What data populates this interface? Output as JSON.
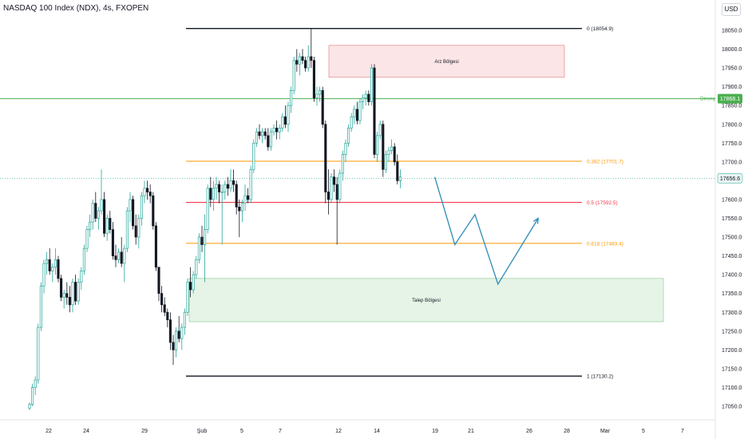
{
  "header": {
    "title": "NASDAQ 100 Index (NDX), 4s, FXOPEN",
    "currency": "USD"
  },
  "colors": {
    "up": "#26a69a",
    "down": "#131722",
    "green_line": "#4caf50",
    "fib_orange": "#ff9800",
    "fib_red": "#f23645",
    "fib_black": "#131722",
    "arrow": "#2e8bb8",
    "supply": "#f7c5c8",
    "demand": "#c8e6c9"
  },
  "chart_data": {
    "type": "candlestick",
    "title": "NASDAQ 100 Index (NDX), 4s, FXOPEN",
    "ylim": [
      17020,
      18080
    ],
    "y_ticks": [
      "18050.0",
      "18000.0",
      "17950.0",
      "17900.0",
      "17850.0",
      "17800.0",
      "17750.0",
      "17700.0",
      "17650.0",
      "17600.0",
      "17550.0",
      "17500.0",
      "17450.0",
      "17400.0",
      "17350.0",
      "17300.0",
      "17250.0",
      "17200.0",
      "17150.0",
      "17100.0",
      "17050.0"
    ],
    "x_ticks": [
      "22",
      "24",
      "29",
      "Şub",
      "5",
      "7",
      "12",
      "14",
      "19",
      "21",
      "26",
      "28",
      "Mar",
      "5",
      "7"
    ],
    "current_price": "17656.6",
    "resistance": {
      "label": "Direnç",
      "value": "17868.1",
      "price": 17868.1
    },
    "fibonacci": [
      {
        "ratio": "0",
        "label": "0 (18054.9)",
        "price": 18054.9
      },
      {
        "ratio": "0.382",
        "label": "0.382 (17701.7)",
        "price": 17701.7
      },
      {
        "ratio": "0.5",
        "label": "0.5 (17592.5)",
        "price": 17592.5
      },
      {
        "ratio": "0.618",
        "label": "0.618 (17483.4)",
        "price": 17483.4
      }
    ],
    "fibonacci_bottom": {
      "ratio": "1",
      "label": "1 (17130.2)",
      "price": 17130.2
    },
    "zones": [
      {
        "name": "Arz Bölgesi",
        "top": 18010,
        "bottom": 17925
      },
      {
        "name": "Talep Bölgesi",
        "top": 17390,
        "bottom": 17275
      }
    ],
    "projection": [
      {
        "bar": 141,
        "price": 17660
      },
      {
        "bar": 148,
        "price": 17480
      },
      {
        "bar": 155,
        "price": 17560
      },
      {
        "bar": 163,
        "price": 17375
      },
      {
        "bar": 177,
        "price": 17550
      }
    ],
    "candles": [
      [
        17045,
        17060,
        17040,
        17055
      ],
      [
        17055,
        17110,
        17050,
        17100
      ],
      [
        17100,
        17130,
        17080,
        17120
      ],
      [
        17120,
        17270,
        17110,
        17260
      ],
      [
        17260,
        17380,
        17250,
        17370
      ],
      [
        17370,
        17440,
        17350,
        17430
      ],
      [
        17430,
        17460,
        17400,
        17440
      ],
      [
        17440,
        17470,
        17400,
        17410
      ],
      [
        17410,
        17430,
        17380,
        17420
      ],
      [
        17420,
        17470,
        17400,
        17440
      ],
      [
        17440,
        17450,
        17380,
        17390
      ],
      [
        17390,
        17400,
        17330,
        17340
      ],
      [
        17340,
        17360,
        17310,
        17350
      ],
      [
        17350,
        17380,
        17320,
        17340
      ],
      [
        17340,
        17370,
        17300,
        17320
      ],
      [
        17320,
        17390,
        17300,
        17380
      ],
      [
        17380,
        17400,
        17320,
        17330
      ],
      [
        17330,
        17390,
        17320,
        17380
      ],
      [
        17380,
        17420,
        17360,
        17410
      ],
      [
        17410,
        17480,
        17400,
        17470
      ],
      [
        17470,
        17530,
        17460,
        17520
      ],
      [
        17520,
        17560,
        17500,
        17540
      ],
      [
        17540,
        17600,
        17520,
        17590
      ],
      [
        17590,
        17620,
        17540,
        17550
      ],
      [
        17550,
        17580,
        17520,
        17570
      ],
      [
        17570,
        17680,
        17560,
        17600
      ],
      [
        17600,
        17620,
        17500,
        17510
      ],
      [
        17510,
        17560,
        17490,
        17550
      ],
      [
        17550,
        17570,
        17510,
        17520
      ],
      [
        17520,
        17540,
        17440,
        17450
      ],
      [
        17450,
        17480,
        17420,
        17440
      ],
      [
        17440,
        17470,
        17430,
        17460
      ],
      [
        17460,
        17500,
        17420,
        17430
      ],
      [
        17430,
        17480,
        17380,
        17470
      ],
      [
        17470,
        17580,
        17460,
        17570
      ],
      [
        17570,
        17620,
        17540,
        17600
      ],
      [
        17600,
        17610,
        17520,
        17530
      ],
      [
        17530,
        17560,
        17480,
        17500
      ],
      [
        17500,
        17560,
        17470,
        17550
      ],
      [
        17550,
        17620,
        17530,
        17610
      ],
      [
        17610,
        17650,
        17590,
        17630
      ],
      [
        17630,
        17650,
        17600,
        17620
      ],
      [
        17620,
        17640,
        17590,
        17610
      ],
      [
        17610,
        17620,
        17520,
        17530
      ],
      [
        17530,
        17540,
        17410,
        17420
      ],
      [
        17420,
        17410,
        17330,
        17350
      ],
      [
        17350,
        17370,
        17300,
        17320
      ],
      [
        17320,
        17340,
        17290,
        17300
      ],
      [
        17300,
        17310,
        17260,
        17280
      ],
      [
        17280,
        17300,
        17200,
        17220
      ],
      [
        17220,
        17240,
        17160,
        17200
      ],
      [
        17200,
        17260,
        17180,
        17250
      ],
      [
        17250,
        17290,
        17220,
        17230
      ],
      [
        17230,
        17270,
        17200,
        17260
      ],
      [
        17260,
        17310,
        17240,
        17300
      ],
      [
        17300,
        17390,
        17290,
        17380
      ],
      [
        17380,
        17420,
        17340,
        17360
      ],
      [
        17360,
        17410,
        17350,
        17400
      ],
      [
        17400,
        17450,
        17390,
        17440
      ],
      [
        17440,
        17510,
        17430,
        17500
      ],
      [
        17500,
        17530,
        17460,
        17480
      ],
      [
        17480,
        17560,
        17380,
        17520
      ],
      [
        17520,
        17640,
        17510,
        17630
      ],
      [
        17630,
        17660,
        17580,
        17600
      ],
      [
        17600,
        17650,
        17570,
        17630
      ],
      [
        17630,
        17660,
        17600,
        17640
      ],
      [
        17640,
        17650,
        17590,
        17620
      ],
      [
        17620,
        17640,
        17480,
        17620
      ],
      [
        17620,
        17650,
        17600,
        17640
      ],
      [
        17640,
        17660,
        17610,
        17630
      ],
      [
        17630,
        17680,
        17620,
        17650
      ],
      [
        17650,
        17680,
        17620,
        17640
      ],
      [
        17640,
        17650,
        17560,
        17580
      ],
      [
        17580,
        17600,
        17500,
        17570
      ],
      [
        17570,
        17600,
        17540,
        17590
      ],
      [
        17590,
        17640,
        17570,
        17610
      ],
      [
        17610,
        17630,
        17590,
        17600
      ],
      [
        17600,
        17690,
        17590,
        17680
      ],
      [
        17680,
        17760,
        17670,
        17750
      ],
      [
        17750,
        17790,
        17740,
        17780
      ],
      [
        17780,
        17800,
        17760,
        17770
      ],
      [
        17770,
        17790,
        17750,
        17780
      ],
      [
        17780,
        17790,
        17760,
        17770
      ],
      [
        17770,
        17790,
        17730,
        17740
      ],
      [
        17740,
        17790,
        17730,
        17780
      ],
      [
        17780,
        17800,
        17770,
        17790
      ],
      [
        17790,
        17810,
        17760,
        17780
      ],
      [
        17780,
        17800,
        17760,
        17790
      ],
      [
        17790,
        17830,
        17780,
        17820
      ],
      [
        17820,
        17850,
        17790,
        17800
      ],
      [
        17800,
        17860,
        17780,
        17850
      ],
      [
        17850,
        17900,
        17830,
        17890
      ],
      [
        17890,
        17980,
        17880,
        17970
      ],
      [
        17970,
        18000,
        17940,
        17960
      ],
      [
        17960,
        17990,
        17930,
        17980
      ],
      [
        17980,
        18000,
        17960,
        17970
      ],
      [
        17970,
        17980,
        17940,
        17950
      ],
      [
        17950,
        18010,
        17940,
        17980
      ],
      [
        17980,
        18055,
        17950,
        17970
      ],
      [
        17970,
        17980,
        17860,
        17870
      ],
      [
        17870,
        17900,
        17850,
        17880
      ],
      [
        17880,
        17900,
        17860,
        17890
      ],
      [
        17890,
        17900,
        17790,
        17800
      ],
      [
        17800,
        17810,
        17590,
        17620
      ],
      [
        17620,
        17680,
        17560,
        17600
      ],
      [
        17600,
        17670,
        17590,
        17660
      ],
      [
        17660,
        17680,
        17620,
        17640
      ],
      [
        17640,
        17660,
        17480,
        17600
      ],
      [
        17600,
        17680,
        17590,
        17670
      ],
      [
        17670,
        17730,
        17650,
        17720
      ],
      [
        17720,
        17760,
        17700,
        17750
      ],
      [
        17750,
        17800,
        17740,
        17790
      ],
      [
        17790,
        17830,
        17780,
        17820
      ],
      [
        17820,
        17850,
        17800,
        17840
      ],
      [
        17840,
        17860,
        17800,
        17810
      ],
      [
        17810,
        17870,
        17800,
        17860
      ],
      [
        17860,
        17880,
        17840,
        17870
      ],
      [
        17870,
        17890,
        17850,
        17880
      ],
      [
        17880,
        17890,
        17850,
        17860
      ],
      [
        17860,
        17960,
        17850,
        17950
      ],
      [
        17950,
        17960,
        17710,
        17720
      ],
      [
        17720,
        17780,
        17700,
        17770
      ],
      [
        17770,
        17810,
        17760,
        17800
      ],
      [
        17800,
        17810,
        17660,
        17680
      ],
      [
        17680,
        17730,
        17670,
        17720
      ],
      [
        17720,
        17740,
        17700,
        17730
      ],
      [
        17730,
        17760,
        17720,
        17740
      ],
      [
        17740,
        17750,
        17690,
        17700
      ],
      [
        17700,
        17720,
        17640,
        17650
      ],
      [
        17650,
        17680,
        17630,
        17660
      ]
    ]
  }
}
